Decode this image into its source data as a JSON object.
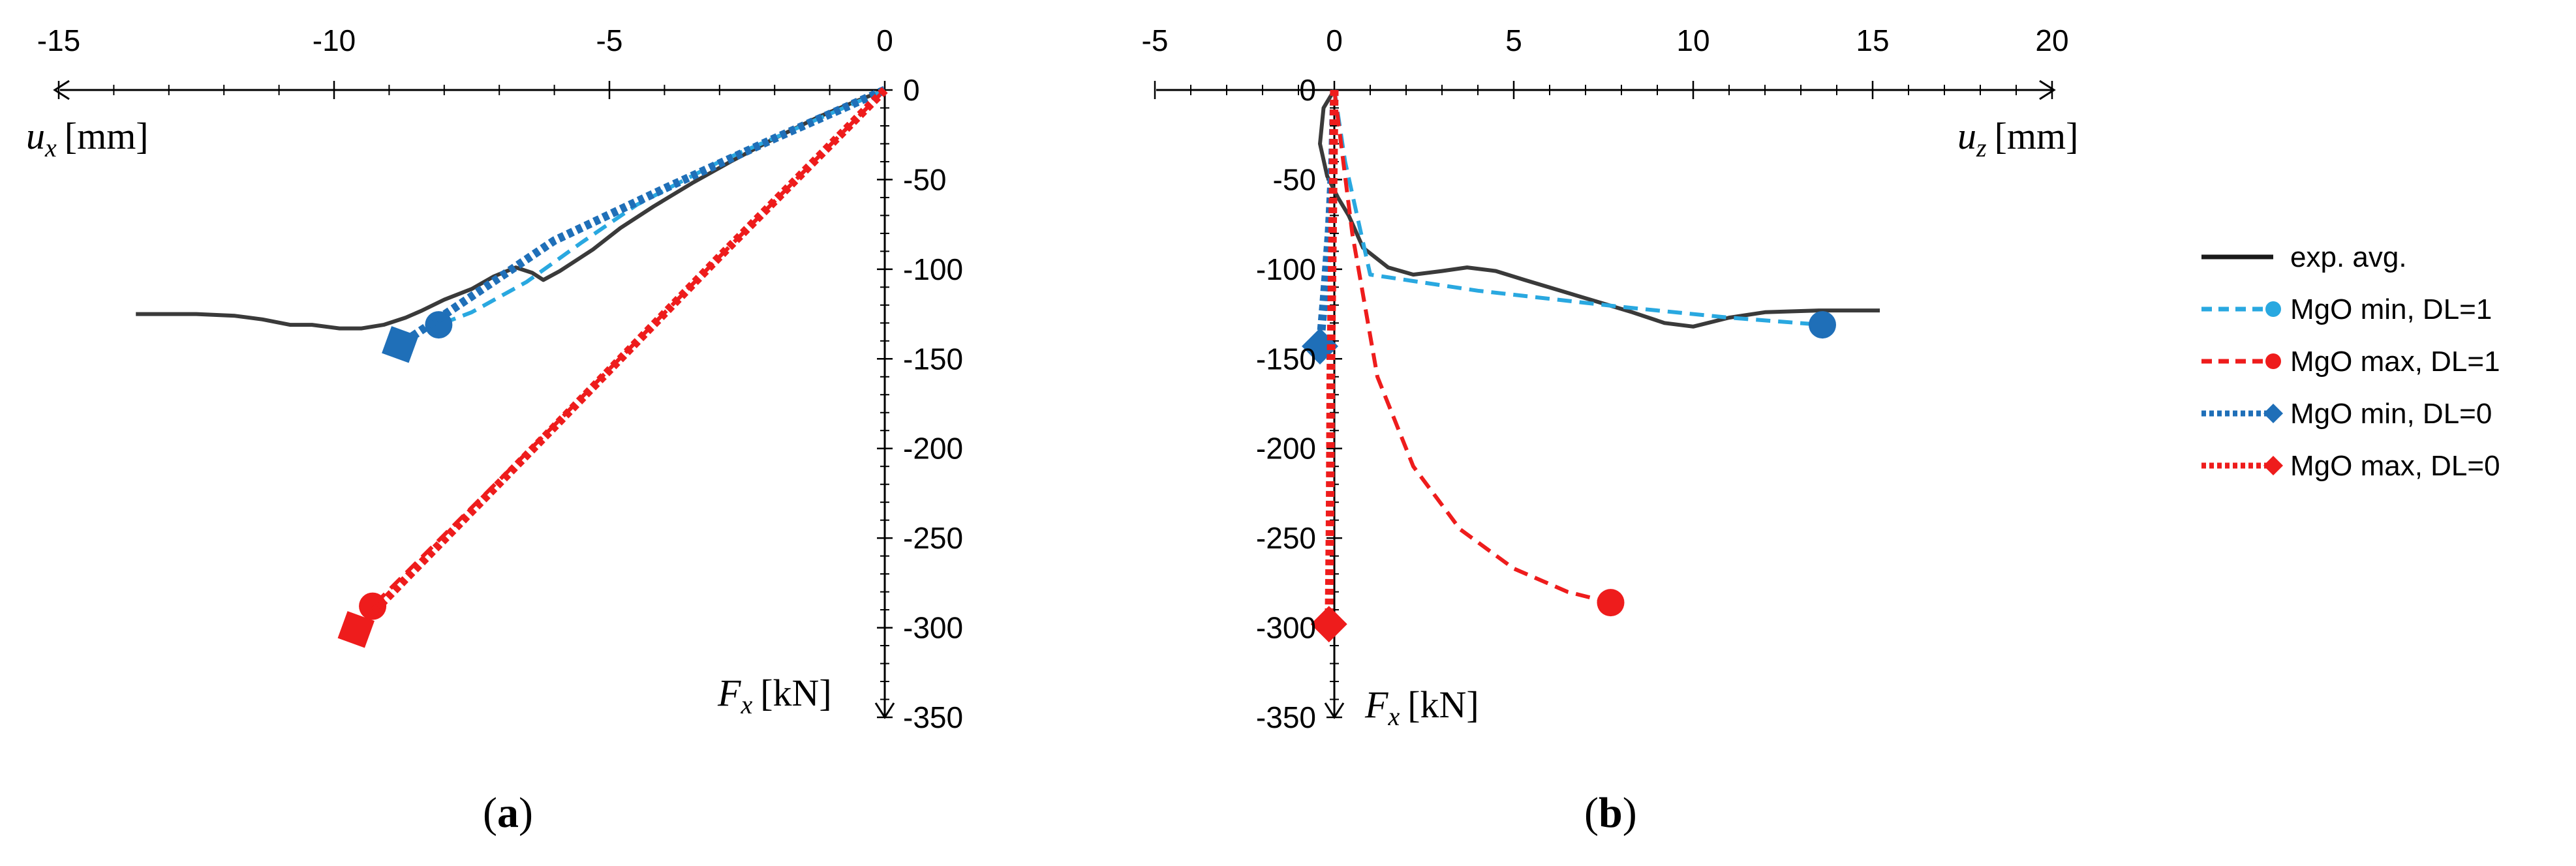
{
  "colors": {
    "exp": "#3a3a3a",
    "min_dl1": "#29a8e0",
    "max_dl1": "#ee1c1c",
    "min_dl0": "#1f6fb8",
    "max_dl0": "#ee1c1c"
  },
  "legend": {
    "items": [
      {
        "label": "exp. avg.",
        "style": "solid",
        "color": "#1a1a1a",
        "marker": "none"
      },
      {
        "label": "MgO min, DL=1",
        "style": "dashed",
        "color": "#29a8e0",
        "marker": "circle"
      },
      {
        "label": "MgO max, DL=1",
        "style": "dashed",
        "color": "#ee1c1c",
        "marker": "circle"
      },
      {
        "label": "MgO min, DL=0",
        "style": "dotted",
        "color": "#1f6fb8",
        "marker": "diamond"
      },
      {
        "label": "MgO max, DL=0",
        "style": "dotted",
        "color": "#ee1c1c",
        "marker": "diamond"
      }
    ]
  },
  "chart_data": [
    {
      "type": "line",
      "panel_label_open": "(",
      "panel_label_letter": "a",
      "panel_label_close": ")",
      "x_axis": {
        "label_var": "u",
        "label_sub": "x",
        "label_unit": "[mm]",
        "range": [
          -15,
          0
        ],
        "ticks": [
          -15,
          -10,
          -5,
          0
        ],
        "tick_labels": [
          "-15",
          "-10",
          "-5",
          "0"
        ]
      },
      "y_axis": {
        "label_var": "F",
        "label_sub": "x",
        "label_unit": "[kN]",
        "range": [
          0,
          -350
        ],
        "ticks": [
          0,
          -50,
          -100,
          -150,
          -200,
          -250,
          -300,
          -350
        ],
        "tick_labels": [
          "0",
          "-50",
          "-100",
          "-150",
          "-200",
          "-250",
          "-300",
          "-350"
        ]
      },
      "series": [
        {
          "name": "exp. avg.",
          "x": [
            0,
            -0.5,
            -1.2,
            -2,
            -2.8,
            -3.5,
            -4.2,
            -4.8,
            -5.3,
            -5.9,
            -6.2,
            -6.4,
            -6.7,
            -7.1,
            -7.5,
            -8.0,
            -8.4,
            -8.7,
            -9.1,
            -9.5,
            -9.9,
            -10.4,
            -10.8,
            -11.3,
            -11.8,
            -12.5,
            -13.0,
            -13.6
          ],
          "y": [
            0,
            -6,
            -15,
            -27,
            -40,
            -52,
            -65,
            -77,
            -89,
            -101,
            -106,
            -102,
            -99,
            -104,
            -111,
            -117,
            -123,
            -127,
            -131,
            -133,
            -133,
            -131,
            -131,
            -128,
            -126,
            -125,
            -125,
            -125
          ]
        },
        {
          "name": "MgO min, DL=1",
          "x": [
            0,
            -1.5,
            -3,
            -4.5,
            -5.5,
            -6.5,
            -7.5,
            -8.1
          ],
          "y": [
            0,
            -20,
            -40,
            -64,
            -85,
            -107,
            -124,
            -131
          ],
          "end_marker": true
        },
        {
          "name": "MgO max, DL=1",
          "x": [
            0,
            -3,
            -6,
            -9.3
          ],
          "y": [
            0,
            -93,
            -187,
            -288
          ],
          "end_marker": true
        },
        {
          "name": "MgO min, DL=0",
          "x": [
            0,
            -2,
            -4,
            -6,
            -8.8
          ],
          "y": [
            0,
            -27,
            -55,
            -84,
            -142
          ],
          "end_marker": true
        },
        {
          "name": "MgO max, DL=0",
          "x": [
            0,
            -3,
            -6,
            -9.6
          ],
          "y": [
            0,
            -93,
            -188,
            -301
          ],
          "end_marker": true
        }
      ]
    },
    {
      "type": "line",
      "panel_label_open": "(",
      "panel_label_letter": "b",
      "panel_label_close": ")",
      "x_axis": {
        "label_var": "u",
        "label_sub": "z",
        "label_unit": "[mm]",
        "range": [
          -5,
          20
        ],
        "ticks": [
          -5,
          0,
          5,
          10,
          15,
          20
        ],
        "tick_labels": [
          "-5",
          "0",
          "5",
          "10",
          "15",
          "20"
        ]
      },
      "y_axis": {
        "label_var": "F",
        "label_sub": "x",
        "label_unit": "[kN]",
        "range": [
          0,
          -350
        ],
        "ticks": [
          0,
          -50,
          -100,
          -150,
          -200,
          -250,
          -300,
          -350
        ],
        "tick_labels": [
          "0",
          "-50",
          "-100",
          "-150",
          "-200",
          "-250",
          "-300",
          "-350"
        ]
      },
      "series": [
        {
          "name": "exp. avg.",
          "x": [
            0,
            -0.3,
            -0.4,
            -0.2,
            0.1,
            0.4,
            0.8,
            1.5,
            2.2,
            3.0,
            3.7,
            4.5,
            5.3,
            6.3,
            7.3,
            8.3,
            9.2,
            10.0,
            11.0,
            12.0,
            13.5,
            15.2
          ],
          "y": [
            0,
            -10,
            -30,
            -48,
            -60,
            -70,
            -88,
            -99,
            -103,
            -101,
            -99,
            -101,
            -106,
            -112,
            -118,
            -124,
            -130,
            -132,
            -127,
            -124,
            -123,
            -123
          ]
        },
        {
          "name": "MgO min, DL=1",
          "x": [
            0,
            0.3,
            1.0,
            4.0,
            8.0,
            11.0,
            13.6
          ],
          "y": [
            0,
            -40,
            -103,
            -112,
            -121,
            -127,
            -131
          ],
          "end_marker": true
        },
        {
          "name": "MgO max, DL=1",
          "x": [
            0,
            0.5,
            1.2,
            2.2,
            3.5,
            5.0,
            6.5,
            7.7
          ],
          "y": [
            0,
            -80,
            -160,
            -210,
            -245,
            -267,
            -280,
            -286
          ],
          "end_marker": true
        },
        {
          "name": "MgO min, DL=0",
          "x": [
            0,
            -0.05,
            -0.15,
            -0.3,
            -0.4
          ],
          "y": [
            0,
            -40,
            -80,
            -120,
            -143
          ],
          "end_marker": true
        },
        {
          "name": "MgO max, DL=0",
          "x": [
            0,
            -0.05,
            -0.1,
            -0.12,
            -0.15
          ],
          "y": [
            0,
            -80,
            -160,
            -240,
            -298
          ],
          "end_marker": true
        }
      ]
    }
  ]
}
